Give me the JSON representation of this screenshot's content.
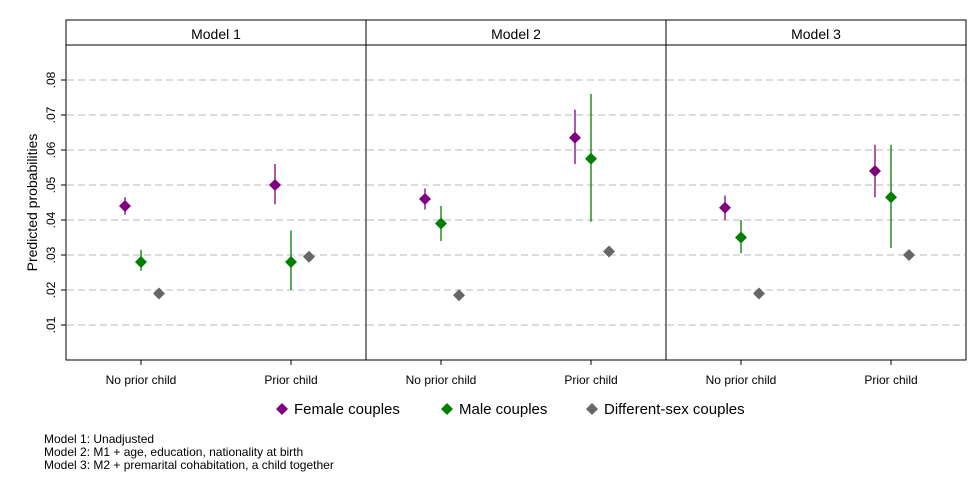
{
  "chart_data": {
    "type": "scatter",
    "ylabel": "Predicted probabilities",
    "ylim": [
      0,
      0.09
    ],
    "yticks": [
      {
        "value": 0.01,
        "label": ".01"
      },
      {
        "value": 0.02,
        "label": ".02"
      },
      {
        "value": 0.03,
        "label": ".03"
      },
      {
        "value": 0.04,
        "label": ".04"
      },
      {
        "value": 0.05,
        "label": ".05"
      },
      {
        "value": 0.06,
        "label": ".06"
      },
      {
        "value": 0.07,
        "label": ".07"
      },
      {
        "value": 0.08,
        "label": ".08"
      }
    ],
    "grid": true,
    "legend_position": "bottom",
    "categories": [
      "No prior child",
      "Prior child"
    ],
    "panels": [
      {
        "title": "Model 1",
        "series": [
          {
            "name": "Female couples",
            "color": "#800080",
            "points": [
              {
                "category": "No prior child",
                "y": 0.044,
                "ci": [
                  0.0415,
                  0.0465
                ]
              },
              {
                "category": "Prior child",
                "y": 0.05,
                "ci": [
                  0.0445,
                  0.056
                ]
              }
            ]
          },
          {
            "name": "Male couples",
            "color": "#008000",
            "points": [
              {
                "category": "No prior child",
                "y": 0.028,
                "ci": [
                  0.0255,
                  0.0315
                ]
              },
              {
                "category": "Prior child",
                "y": 0.028,
                "ci": [
                  0.02,
                  0.037
                ]
              }
            ]
          },
          {
            "name": "Different-sex couples",
            "color": "#666666",
            "points": [
              {
                "category": "No prior child",
                "y": 0.019,
                "ci": null
              },
              {
                "category": "Prior child",
                "y": 0.0295,
                "ci": null
              }
            ]
          }
        ]
      },
      {
        "title": "Model 2",
        "series": [
          {
            "name": "Female couples",
            "color": "#800080",
            "points": [
              {
                "category": "No prior child",
                "y": 0.046,
                "ci": [
                  0.043,
                  0.049
                ]
              },
              {
                "category": "Prior child",
                "y": 0.0635,
                "ci": [
                  0.056,
                  0.0715
                ]
              }
            ]
          },
          {
            "name": "Male couples",
            "color": "#008000",
            "points": [
              {
                "category": "No prior child",
                "y": 0.039,
                "ci": [
                  0.034,
                  0.044
                ]
              },
              {
                "category": "Prior child",
                "y": 0.0575,
                "ci": [
                  0.0395,
                  0.076
                ]
              }
            ]
          },
          {
            "name": "Different-sex couples",
            "color": "#666666",
            "points": [
              {
                "category": "No prior child",
                "y": 0.0185,
                "ci": null
              },
              {
                "category": "Prior child",
                "y": 0.031,
                "ci": null
              }
            ]
          }
        ]
      },
      {
        "title": "Model 3",
        "series": [
          {
            "name": "Female couples",
            "color": "#800080",
            "points": [
              {
                "category": "No prior child",
                "y": 0.0435,
                "ci": [
                  0.04,
                  0.047
                ]
              },
              {
                "category": "Prior child",
                "y": 0.054,
                "ci": [
                  0.0465,
                  0.0615
                ]
              }
            ]
          },
          {
            "name": "Male couples",
            "color": "#008000",
            "points": [
              {
                "category": "No prior child",
                "y": 0.035,
                "ci": [
                  0.0305,
                  0.04
                ]
              },
              {
                "category": "Prior child",
                "y": 0.0465,
                "ci": [
                  0.032,
                  0.0615
                ]
              }
            ]
          },
          {
            "name": "Different-sex couples",
            "color": "#666666",
            "points": [
              {
                "category": "No prior child",
                "y": 0.019,
                "ci": null
              },
              {
                "category": "Prior child",
                "y": 0.03,
                "ci": null
              }
            ]
          }
        ]
      }
    ],
    "legend": [
      {
        "label": "Female couples",
        "color": "#800080"
      },
      {
        "label": "Male couples",
        "color": "#008000"
      },
      {
        "label": "Different-sex couples",
        "color": "#666666"
      }
    ],
    "notes": [
      "Model 1: Unadjusted",
      "Model 2: M1 + age, education, nationality at birth",
      "Model 3: M2 + premarital cohabitation, a child together"
    ]
  }
}
